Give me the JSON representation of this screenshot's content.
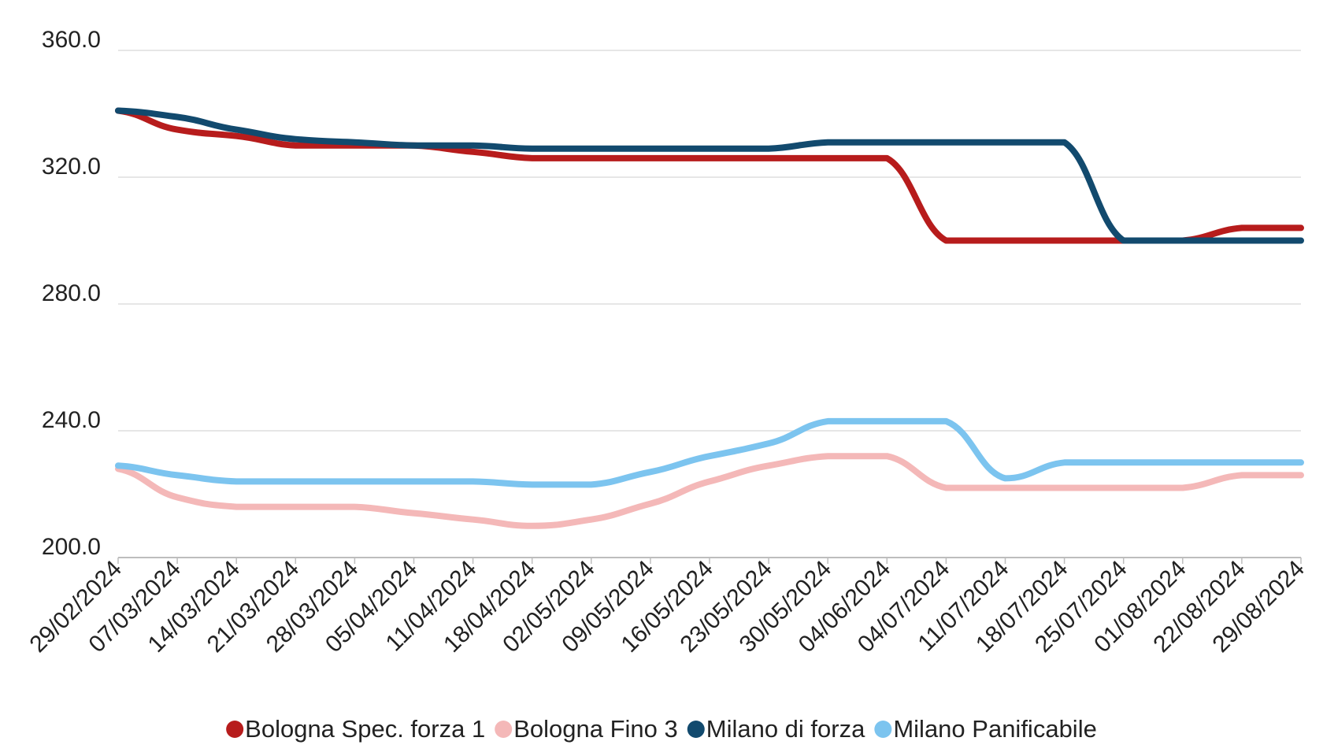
{
  "chart_data": {
    "type": "line",
    "title": "",
    "xlabel": "",
    "ylabel": "",
    "ylim": [
      200,
      360
    ],
    "y_ticks": [
      "200.0",
      "240.0",
      "280.0",
      "320.0",
      "360.0"
    ],
    "y_tick_values": [
      200,
      240,
      280,
      320,
      360
    ],
    "grid": "horizontal",
    "legend_position": "bottom",
    "categories": [
      "29/02/2024",
      "07/03/2024",
      "14/03/2024",
      "21/03/2024",
      "28/03/2024",
      "05/04/2024",
      "11/04/2024",
      "18/04/2024",
      "02/05/2024",
      "09/05/2024",
      "16/05/2024",
      "23/05/2024",
      "30/05/2024",
      "04/06/2024",
      "04/07/2024",
      "11/07/2024",
      "18/07/2024",
      "25/07/2024",
      "01/08/2024",
      "22/08/2024",
      "29/08/2024"
    ],
    "series": [
      {
        "name": "Bologna Spec. forza 1",
        "color": "#b71c1c",
        "values": [
          341,
          335,
          333,
          330,
          330,
          330,
          328,
          326,
          326,
          326,
          326,
          326,
          326,
          326,
          300,
          300,
          300,
          300,
          300,
          304,
          304
        ]
      },
      {
        "name": "Bologna Fino 3",
        "color": "#f4b8b8",
        "values": [
          228,
          219,
          216,
          216,
          216,
          214,
          212,
          210,
          212,
          217,
          224,
          229,
          232,
          232,
          222,
          222,
          222,
          222,
          222,
          226,
          226
        ]
      },
      {
        "name": "Milano di forza",
        "color": "#124a6e",
        "values": [
          341,
          339,
          335,
          332,
          331,
          330,
          330,
          329,
          329,
          329,
          329,
          329,
          331,
          331,
          331,
          331,
          331,
          300,
          300,
          300,
          300
        ]
      },
      {
        "name": "Milano Panificabile",
        "color": "#7cc4ef",
        "values": [
          229,
          226,
          224,
          224,
          224,
          224,
          224,
          223,
          223,
          227,
          232,
          236,
          243,
          243,
          243,
          225,
          230,
          230,
          230,
          230,
          230
        ]
      }
    ]
  }
}
